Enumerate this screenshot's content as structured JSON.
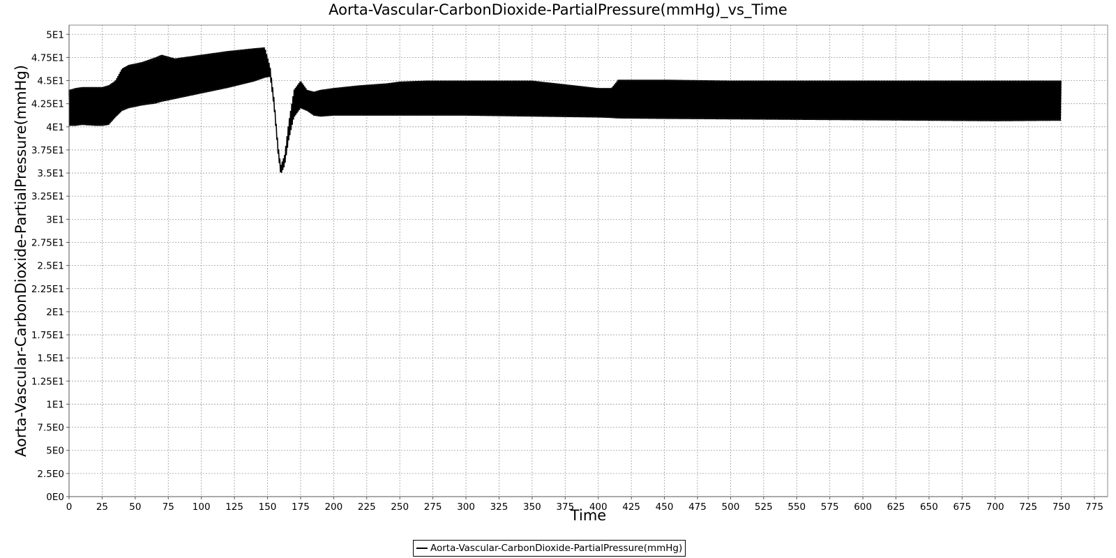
{
  "chart_data": {
    "type": "line",
    "title": "Aorta-Vascular-CarbonDioxide-PartialPressure(mmHg)_vs_Time",
    "xlabel": "Time",
    "ylabel": "Aorta-Vascular-CarbonDioxide-PartialPressure(mmHg)",
    "xlim": [
      0,
      785
    ],
    "ylim": [
      0,
      51
    ],
    "x_ticks": [
      0,
      25,
      50,
      75,
      100,
      125,
      150,
      175,
      200,
      225,
      250,
      275,
      300,
      325,
      350,
      375,
      400,
      425,
      450,
      475,
      500,
      525,
      550,
      575,
      600,
      625,
      650,
      675,
      700,
      725,
      750,
      775
    ],
    "x_tick_labels": [
      "0",
      "25",
      "50",
      "75",
      "100",
      "125",
      "150",
      "175",
      "200",
      "225",
      "250",
      "275",
      "300",
      "325",
      "350",
      "375",
      "400",
      "425",
      "450",
      "475",
      "500",
      "525",
      "550",
      "575",
      "600",
      "625",
      "650",
      "675",
      "700",
      "725",
      "750",
      "775"
    ],
    "y_ticks": [
      0,
      2.5,
      5,
      7.5,
      10,
      12.5,
      15,
      17.5,
      20,
      22.5,
      25,
      27.5,
      30,
      32.5,
      35,
      37.5,
      40,
      42.5,
      45,
      47.5,
      50
    ],
    "y_tick_labels": [
      "0E0",
      "2.5E0",
      "5E0",
      "7.5E0",
      "1E1",
      "1.25E1",
      "1.5E1",
      "1.75E1",
      "2E1",
      "2.25E1",
      "2.5E1",
      "2.75E1",
      "3E1",
      "3.25E1",
      "3.5E1",
      "3.75E1",
      "4E1",
      "4.25E1",
      "4.5E1",
      "4.75E1",
      "5E1"
    ],
    "grid": true,
    "legend_position": "bottom-center",
    "series": [
      {
        "name": "Aorta-Vascular-CarbonDioxide-PartialPressure(mmHg)",
        "color": "#000000",
        "envelope": {
          "x": [
            0,
            5,
            10,
            20,
            25,
            30,
            35,
            40,
            45,
            55,
            65,
            70,
            80,
            100,
            120,
            140,
            148,
            152,
            155,
            158,
            160,
            163,
            166,
            170,
            175,
            180,
            185,
            190,
            200,
            220,
            240,
            250,
            270,
            300,
            350,
            400,
            410,
            415,
            450,
            500,
            600,
            700,
            750
          ],
          "min": [
            40.1,
            40.1,
            40.2,
            40.1,
            40.1,
            40.2,
            41.0,
            41.7,
            42.0,
            42.3,
            42.5,
            42.7,
            43.0,
            43.6,
            44.2,
            44.9,
            45.3,
            45.4,
            42.0,
            37.0,
            34.8,
            35.8,
            38.5,
            41.0,
            42.0,
            41.7,
            41.2,
            41.1,
            41.2,
            41.2,
            41.2,
            41.2,
            41.2,
            41.2,
            41.1,
            41.0,
            40.95,
            40.9,
            40.85,
            40.8,
            40.7,
            40.6,
            40.65
          ],
          "max": [
            44.0,
            44.2,
            44.3,
            44.3,
            44.3,
            44.5,
            45.0,
            46.3,
            46.7,
            47.0,
            47.5,
            47.8,
            47.4,
            47.8,
            48.2,
            48.5,
            48.6,
            46.5,
            43.0,
            38.0,
            35.8,
            37.0,
            40.5,
            44.0,
            45.0,
            44.0,
            43.8,
            44.0,
            44.2,
            44.5,
            44.7,
            44.9,
            45.0,
            45.0,
            45.0,
            44.2,
            44.2,
            45.1,
            45.1,
            45.0,
            45.0,
            45.0,
            45.0
          ]
        }
      }
    ]
  }
}
